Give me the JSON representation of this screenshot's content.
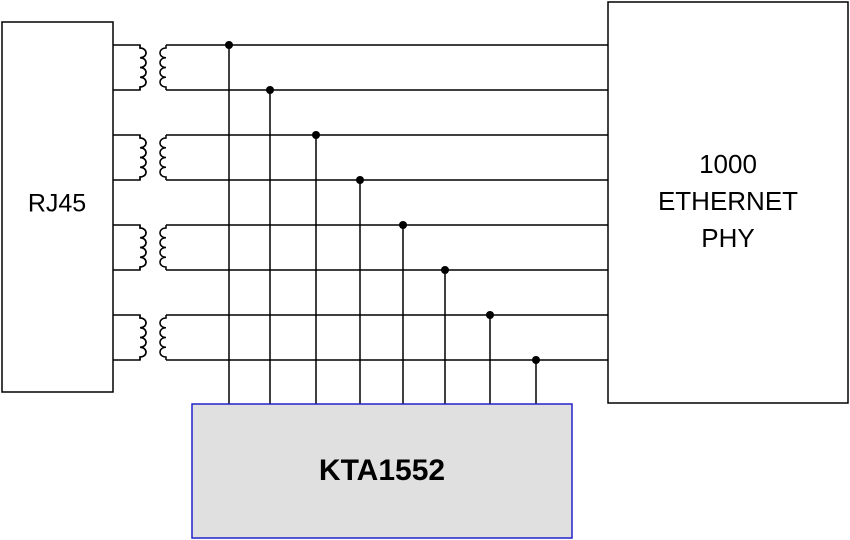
{
  "nodes": [
    {
      "label": "RJ45"
    },
    {
      "label_lines": [
        "1000",
        "ETHERNET",
        "PHY"
      ]
    },
    {
      "label": "KTA1552"
    }
  ]
}
